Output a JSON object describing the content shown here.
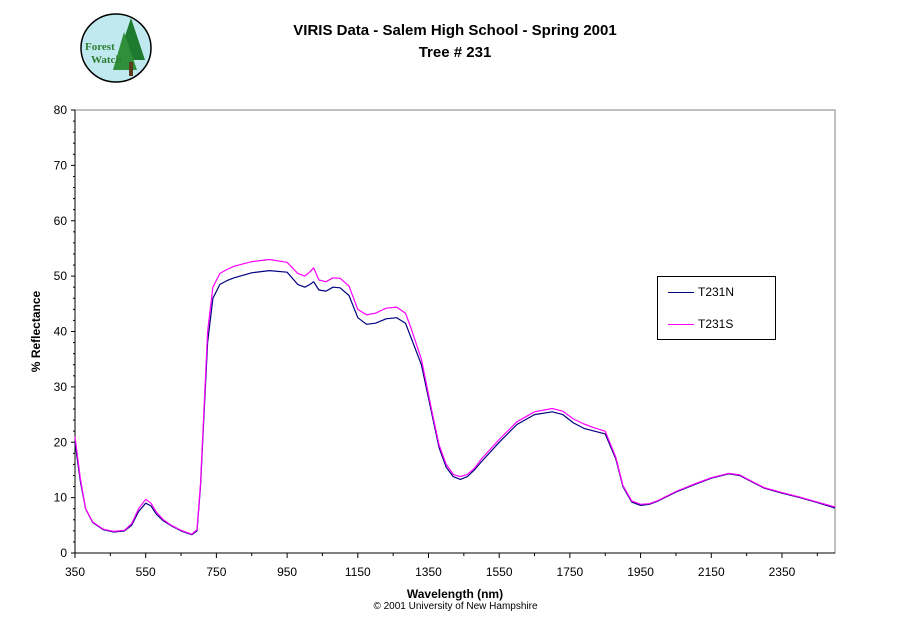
{
  "header": {
    "title_line1": "VIRIS Data -  Salem High School - Spring 2001",
    "title_line2": "Tree # 231"
  },
  "logo": {
    "text_line1": "Forest",
    "text_line2": "Watch",
    "icon": "forest-watch-logo"
  },
  "footer": {
    "copyright": "© 2001 University of New Hampshire"
  },
  "colors": {
    "T231N": "#000080",
    "T231S": "#ff00ff",
    "plot_border": "#808080"
  },
  "chart_data": {
    "type": "line",
    "title": "VIRIS Data -  Salem High School - Spring 2001",
    "subtitle": "Tree # 231",
    "xlabel": "Wavelength (nm)",
    "ylabel": "% Reflectance",
    "xlim": [
      350,
      2500
    ],
    "ylim": [
      0,
      80
    ],
    "xticks": [
      350,
      550,
      750,
      950,
      1150,
      1350,
      1550,
      1750,
      1950,
      2150,
      2350
    ],
    "yticks": [
      0,
      10,
      20,
      30,
      40,
      50,
      60,
      70,
      80
    ],
    "grid": false,
    "legend_position": "right",
    "series": [
      {
        "name": "T231N",
        "x": [
          350,
          365,
          380,
          400,
          430,
          460,
          490,
          510,
          530,
          550,
          565,
          580,
          600,
          620,
          650,
          680,
          695,
          705,
          715,
          725,
          740,
          760,
          780,
          800,
          850,
          900,
          950,
          980,
          1000,
          1015,
          1025,
          1040,
          1060,
          1080,
          1100,
          1125,
          1150,
          1175,
          1200,
          1230,
          1260,
          1285,
          1300,
          1330,
          1360,
          1380,
          1400,
          1420,
          1440,
          1460,
          1480,
          1500,
          1550,
          1600,
          1650,
          1700,
          1730,
          1760,
          1790,
          1820,
          1850,
          1880,
          1900,
          1925,
          1950,
          1975,
          2000,
          2050,
          2100,
          2150,
          2200,
          2230,
          2260,
          2300,
          2350,
          2400,
          2450,
          2500
        ],
        "y": [
          20,
          13,
          8,
          5.5,
          4.2,
          3.8,
          4,
          5,
          7.5,
          9,
          8.5,
          7,
          5.8,
          5,
          4,
          3.3,
          4,
          12,
          25,
          38,
          46,
          48.5,
          49.2,
          49.7,
          50.6,
          51,
          50.7,
          48.5,
          48,
          48.5,
          49,
          47.5,
          47.3,
          48,
          47.9,
          46.5,
          42.5,
          41.3,
          41.5,
          42.3,
          42.5,
          41.5,
          39,
          34,
          25,
          19,
          15.5,
          13.8,
          13.3,
          13.8,
          15,
          16.5,
          20,
          23.2,
          25,
          25.5,
          25,
          23.5,
          22.5,
          22,
          21.5,
          17,
          12,
          9.2,
          8.6,
          8.8,
          9.4,
          11,
          12.3,
          13.5,
          14.3,
          14,
          13,
          11.7,
          10.8,
          10,
          9.1,
          8.1
        ]
      },
      {
        "name": "T231S",
        "x": [
          350,
          365,
          380,
          400,
          430,
          460,
          490,
          510,
          530,
          550,
          565,
          580,
          600,
          620,
          650,
          680,
          695,
          705,
          715,
          725,
          740,
          760,
          780,
          800,
          850,
          900,
          950,
          980,
          1000,
          1015,
          1025,
          1040,
          1060,
          1080,
          1100,
          1125,
          1150,
          1175,
          1200,
          1230,
          1260,
          1285,
          1300,
          1330,
          1360,
          1380,
          1400,
          1420,
          1440,
          1460,
          1480,
          1500,
          1550,
          1600,
          1650,
          1700,
          1730,
          1760,
          1790,
          1820,
          1850,
          1880,
          1900,
          1925,
          1950,
          1975,
          2000,
          2050,
          2100,
          2150,
          2200,
          2230,
          2260,
          2300,
          2350,
          2400,
          2450,
          2500
        ],
        "y": [
          21,
          13.5,
          8,
          5.6,
          4.3,
          3.9,
          4.1,
          5.3,
          8,
          9.7,
          9,
          7.4,
          6,
          5.1,
          4.1,
          3.4,
          4.2,
          12.5,
          26,
          40,
          48,
          50.5,
          51.2,
          51.8,
          52.6,
          53,
          52.5,
          50.5,
          50,
          50.8,
          51.5,
          49.3,
          49,
          49.7,
          49.6,
          48.2,
          44,
          43,
          43.3,
          44.2,
          44.4,
          43.3,
          40.7,
          35,
          25.5,
          19.5,
          16,
          14.2,
          13.8,
          14.2,
          15.3,
          17,
          20.5,
          23.7,
          25.5,
          26.1,
          25.6,
          24.2,
          23.3,
          22.6,
          22,
          17.3,
          12.2,
          9.4,
          8.8,
          8.9,
          9.5,
          11.1,
          12.4,
          13.6,
          14.4,
          14.1,
          13.1,
          11.8,
          10.9,
          10.1,
          9.2,
          8.3
        ]
      }
    ]
  }
}
